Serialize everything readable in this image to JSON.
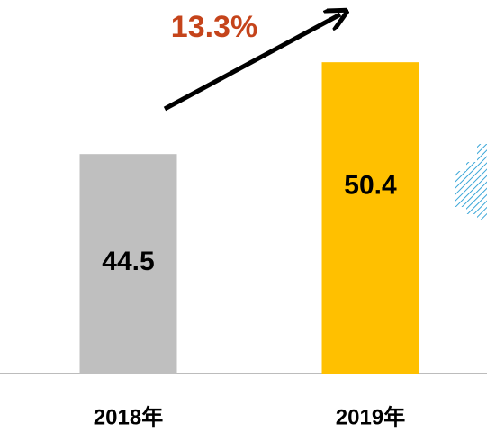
{
  "chart_data": {
    "type": "bar",
    "annotation": "13.3%",
    "categories": [
      "2018年",
      "2019年"
    ],
    "values": [
      44.5,
      50.4
    ],
    "colors": [
      "#bfbfbf",
      "#ffc000"
    ],
    "ylim": [
      30.4,
      54.4
    ]
  }
}
